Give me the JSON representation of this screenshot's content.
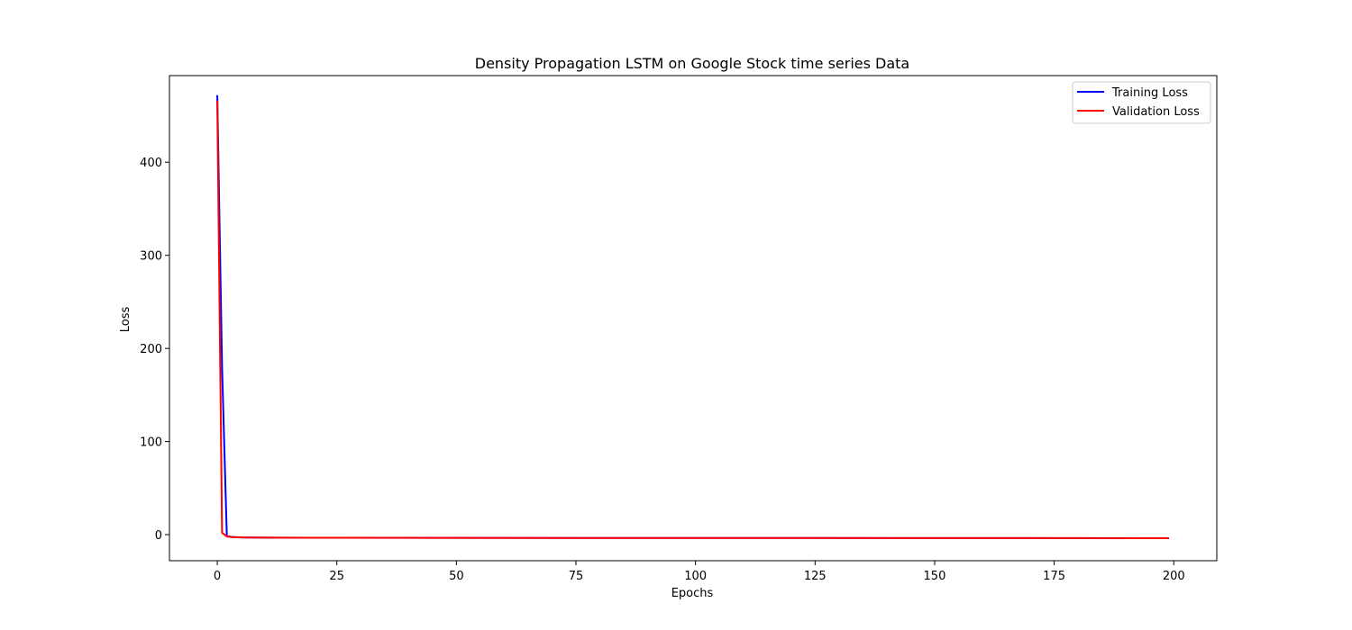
{
  "chart_data": {
    "type": "line",
    "title": "Density Propagation LSTM on Google Stock time series Data",
    "xlabel": "Epochs",
    "ylabel": "Loss",
    "xlim": [
      -10,
      209
    ],
    "ylim": [
      -28,
      493
    ],
    "xticks": [
      0,
      25,
      50,
      75,
      100,
      125,
      150,
      175,
      200
    ],
    "yticks": [
      0,
      100,
      200,
      300,
      400
    ],
    "grid": false,
    "legend_position": "top-right",
    "series": [
      {
        "name": "Training Loss",
        "color": "#0000ff",
        "points": [
          [
            0,
            472
          ],
          [
            1,
            180
          ],
          [
            2,
            -1.5
          ],
          [
            3,
            -2.5
          ],
          [
            5,
            -3.0
          ],
          [
            10,
            -3.2
          ],
          [
            20,
            -3.3
          ],
          [
            50,
            -3.5
          ],
          [
            100,
            -3.6
          ],
          [
            150,
            -3.7
          ],
          [
            199,
            -3.8
          ]
        ]
      },
      {
        "name": "Validation Loss",
        "color": "#ff0000",
        "points": [
          [
            0,
            466
          ],
          [
            1,
            2
          ],
          [
            2,
            -2.0
          ],
          [
            3,
            -2.6
          ],
          [
            5,
            -3.0
          ],
          [
            10,
            -3.2
          ],
          [
            20,
            -3.3
          ],
          [
            50,
            -3.5
          ],
          [
            100,
            -3.6
          ],
          [
            150,
            -3.7
          ],
          [
            199,
            -3.8
          ]
        ]
      }
    ]
  }
}
